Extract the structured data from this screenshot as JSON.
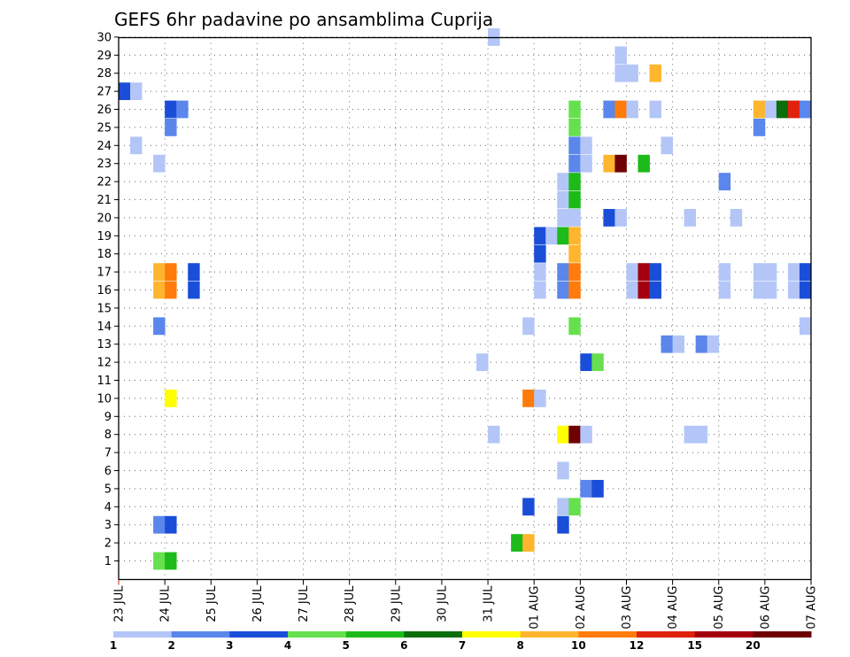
{
  "chart_data": {
    "type": "heatmap",
    "title": "GEFS 6hr padavine po ansamblima Cuprija",
    "xlabel": "",
    "ylabel": "",
    "y_range": [
      1,
      30
    ],
    "x_range": [
      "23 JUL 00Z",
      "07 AUG 00Z"
    ],
    "x_ticks": [
      "23 JUL",
      "24 JUL",
      "25 JUL",
      "26 JUL",
      "27 JUL",
      "28 JUL",
      "29 JUL",
      "30 JUL",
      "31 JUL",
      "01 AUG",
      "02 AUG",
      "03 AUG",
      "04 AUG",
      "05 AUG",
      "06 AUG",
      "07 AUG"
    ],
    "y_ticks": [
      1,
      2,
      3,
      4,
      5,
      6,
      7,
      8,
      9,
      10,
      11,
      12,
      13,
      14,
      15,
      16,
      17,
      18,
      19,
      20,
      21,
      22,
      23,
      24,
      25,
      26,
      27,
      28,
      29,
      30
    ],
    "grid": true,
    "colorbar": {
      "labels": [
        "1",
        "2",
        "3",
        "4",
        "5",
        "6",
        "7",
        "8",
        "10",
        "12",
        "15",
        "20"
      ],
      "colors": [
        "#b3c6f7",
        "#5b86ec",
        "#1a4ed8",
        "#66e04e",
        "#1cbb1a",
        "#0a6e0a",
        "#ffff00",
        "#ffb52e",
        "#ff7b0c",
        "#e0210e",
        "#a5000f",
        "#6e0000"
      ],
      "placement": "bottom"
    },
    "cells": [
      {
        "t": 0,
        "m": 27,
        "c": 2
      },
      {
        "t": 1,
        "m": 27,
        "c": 0
      },
      {
        "t": 1,
        "m": 24,
        "c": 0
      },
      {
        "t": 4,
        "m": 26,
        "c": 2
      },
      {
        "t": 5,
        "m": 26,
        "c": 1
      },
      {
        "t": 4,
        "m": 25,
        "c": 1
      },
      {
        "t": 3,
        "m": 23,
        "c": 0
      },
      {
        "t": 3,
        "m": 17,
        "c": 7
      },
      {
        "t": 3,
        "m": 16,
        "c": 7
      },
      {
        "t": 4,
        "m": 17,
        "c": 8
      },
      {
        "t": 4,
        "m": 16,
        "c": 8
      },
      {
        "t": 6,
        "m": 17,
        "c": 2
      },
      {
        "t": 6,
        "m": 16,
        "c": 2
      },
      {
        "t": 3,
        "m": 14,
        "c": 1
      },
      {
        "t": 4,
        "m": 10,
        "c": 6
      },
      {
        "t": 3,
        "m": 3,
        "c": 1
      },
      {
        "t": 4,
        "m": 3,
        "c": 2
      },
      {
        "t": 3,
        "m": 1,
        "c": 3
      },
      {
        "t": 4,
        "m": 1,
        "c": 4
      },
      {
        "t": 32,
        "m": 30,
        "c": 0
      },
      {
        "t": 31,
        "m": 12,
        "c": 0
      },
      {
        "t": 32,
        "m": 8,
        "c": 0
      },
      {
        "t": 34,
        "m": 2,
        "c": 4
      },
      {
        "t": 35,
        "m": 2,
        "c": 7
      },
      {
        "t": 35,
        "m": 4,
        "c": 2
      },
      {
        "t": 35,
        "m": 10,
        "c": 8
      },
      {
        "t": 36,
        "m": 10,
        "c": 0
      },
      {
        "t": 35,
        "m": 14,
        "c": 0
      },
      {
        "t": 36,
        "m": 18,
        "c": 2
      },
      {
        "t": 36,
        "m": 19,
        "c": 2
      },
      {
        "t": 37,
        "m": 19,
        "c": 0
      },
      {
        "t": 36,
        "m": 17,
        "c": 0
      },
      {
        "t": 36,
        "m": 16,
        "c": 0
      },
      {
        "t": 38,
        "m": 20,
        "c": 0
      },
      {
        "t": 39,
        "m": 20,
        "c": 0
      },
      {
        "t": 38,
        "m": 19,
        "c": 4
      },
      {
        "t": 39,
        "m": 19,
        "c": 7
      },
      {
        "t": 39,
        "m": 18,
        "c": 7
      },
      {
        "t": 38,
        "m": 17,
        "c": 1
      },
      {
        "t": 38,
        "m": 16,
        "c": 1
      },
      {
        "t": 39,
        "m": 17,
        "c": 8
      },
      {
        "t": 39,
        "m": 16,
        "c": 8
      },
      {
        "t": 38,
        "m": 22,
        "c": 0
      },
      {
        "t": 38,
        "m": 21,
        "c": 0
      },
      {
        "t": 39,
        "m": 22,
        "c": 4
      },
      {
        "t": 39,
        "m": 21,
        "c": 4
      },
      {
        "t": 39,
        "m": 24,
        "c": 1
      },
      {
        "t": 39,
        "m": 23,
        "c": 1
      },
      {
        "t": 40,
        "m": 24,
        "c": 0
      },
      {
        "t": 40,
        "m": 23,
        "c": 0
      },
      {
        "t": 39,
        "m": 26,
        "c": 3
      },
      {
        "t": 39,
        "m": 25,
        "c": 3
      },
      {
        "t": 39,
        "m": 14,
        "c": 3
      },
      {
        "t": 38,
        "m": 8,
        "c": 6
      },
      {
        "t": 39,
        "m": 8,
        "c": 11
      },
      {
        "t": 40,
        "m": 8,
        "c": 0
      },
      {
        "t": 38,
        "m": 6,
        "c": 0
      },
      {
        "t": 38,
        "m": 4,
        "c": 0
      },
      {
        "t": 39,
        "m": 4,
        "c": 3
      },
      {
        "t": 38,
        "m": 3,
        "c": 2
      },
      {
        "t": 40,
        "m": 5,
        "c": 1
      },
      {
        "t": 41,
        "m": 5,
        "c": 2
      },
      {
        "t": 40,
        "m": 12,
        "c": 2
      },
      {
        "t": 41,
        "m": 12,
        "c": 3
      },
      {
        "t": 42,
        "m": 26,
        "c": 1
      },
      {
        "t": 43,
        "m": 26,
        "c": 8
      },
      {
        "t": 44,
        "m": 26,
        "c": 0
      },
      {
        "t": 46,
        "m": 26,
        "c": 0
      },
      {
        "t": 43,
        "m": 29,
        "c": 0
      },
      {
        "t": 43,
        "m": 28,
        "c": 0
      },
      {
        "t": 44,
        "m": 28,
        "c": 0
      },
      {
        "t": 46,
        "m": 28,
        "c": 7
      },
      {
        "t": 42,
        "m": 23,
        "c": 7
      },
      {
        "t": 43,
        "m": 23,
        "c": 11
      },
      {
        "t": 45,
        "m": 23,
        "c": 4
      },
      {
        "t": 42,
        "m": 20,
        "c": 2
      },
      {
        "t": 43,
        "m": 20,
        "c": 0
      },
      {
        "t": 44,
        "m": 17,
        "c": 0
      },
      {
        "t": 44,
        "m": 16,
        "c": 0
      },
      {
        "t": 45,
        "m": 17,
        "c": 10
      },
      {
        "t": 45,
        "m": 16,
        "c": 10
      },
      {
        "t": 46,
        "m": 17,
        "c": 2
      },
      {
        "t": 46,
        "m": 16,
        "c": 2
      },
      {
        "t": 47,
        "m": 24,
        "c": 0
      },
      {
        "t": 47,
        "m": 13,
        "c": 1
      },
      {
        "t": 48,
        "m": 13,
        "c": 0
      },
      {
        "t": 49,
        "m": 20,
        "c": 0
      },
      {
        "t": 49,
        "m": 8,
        "c": 0
      },
      {
        "t": 50,
        "m": 8,
        "c": 0
      },
      {
        "t": 50,
        "m": 13,
        "c": 1
      },
      {
        "t": 51,
        "m": 13,
        "c": 0
      },
      {
        "t": 52,
        "m": 22,
        "c": 1
      },
      {
        "t": 52,
        "m": 17,
        "c": 0
      },
      {
        "t": 52,
        "m": 16,
        "c": 0
      },
      {
        "t": 53,
        "m": 20,
        "c": 0
      },
      {
        "t": 55,
        "m": 26,
        "c": 7
      },
      {
        "t": 56,
        "m": 26,
        "c": 0
      },
      {
        "t": 57,
        "m": 26,
        "c": 5
      },
      {
        "t": 58,
        "m": 26,
        "c": 9
      },
      {
        "t": 59,
        "m": 26,
        "c": 1
      },
      {
        "t": 55,
        "m": 25,
        "c": 1
      },
      {
        "t": 55,
        "m": 17,
        "c": 0
      },
      {
        "t": 55,
        "m": 16,
        "c": 0
      },
      {
        "t": 56,
        "m": 17,
        "c": 0
      },
      {
        "t": 56,
        "m": 16,
        "c": 0
      },
      {
        "t": 58,
        "m": 17,
        "c": 0
      },
      {
        "t": 58,
        "m": 16,
        "c": 0
      },
      {
        "t": 59,
        "m": 17,
        "c": 2
      },
      {
        "t": 59,
        "m": 16,
        "c": 2
      },
      {
        "t": 59,
        "m": 14,
        "c": 0
      }
    ]
  }
}
